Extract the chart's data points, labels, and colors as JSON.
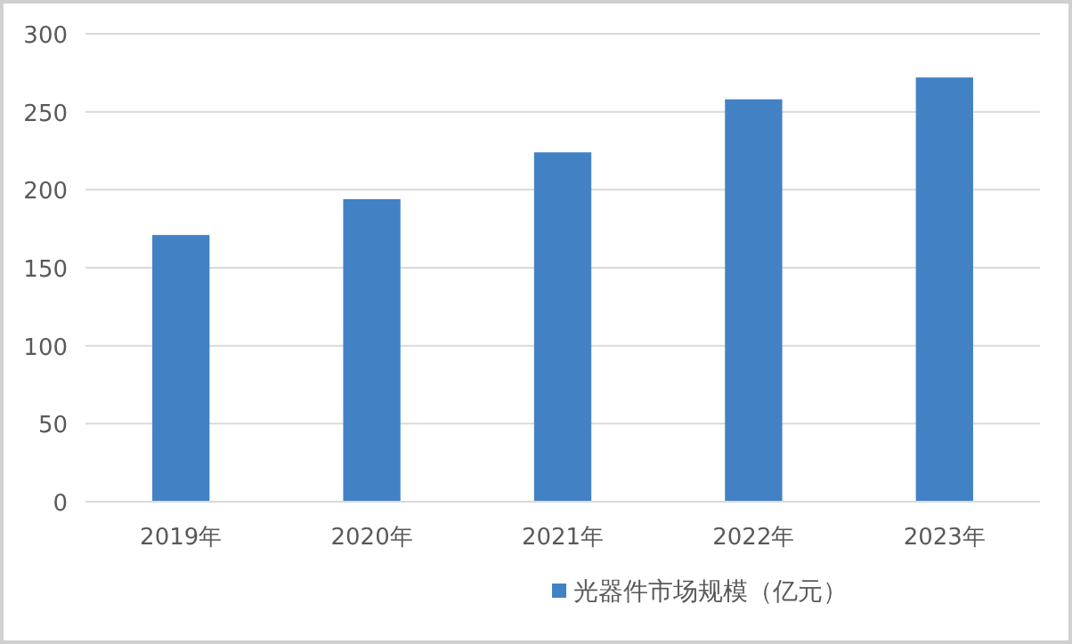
{
  "chart_data": {
    "type": "bar",
    "categories": [
      "2019年",
      "2020年",
      "2021年",
      "2022年",
      "2023年"
    ],
    "series": [
      {
        "name": "光器件市场规模（亿元）",
        "color": "#4282c4",
        "values": [
          171,
          194,
          224,
          258,
          272
        ]
      }
    ],
    "ylim": [
      0,
      300
    ],
    "yticks": [
      0,
      50,
      100,
      150,
      200,
      250,
      300
    ],
    "grid": "y",
    "legend": "bottom"
  }
}
